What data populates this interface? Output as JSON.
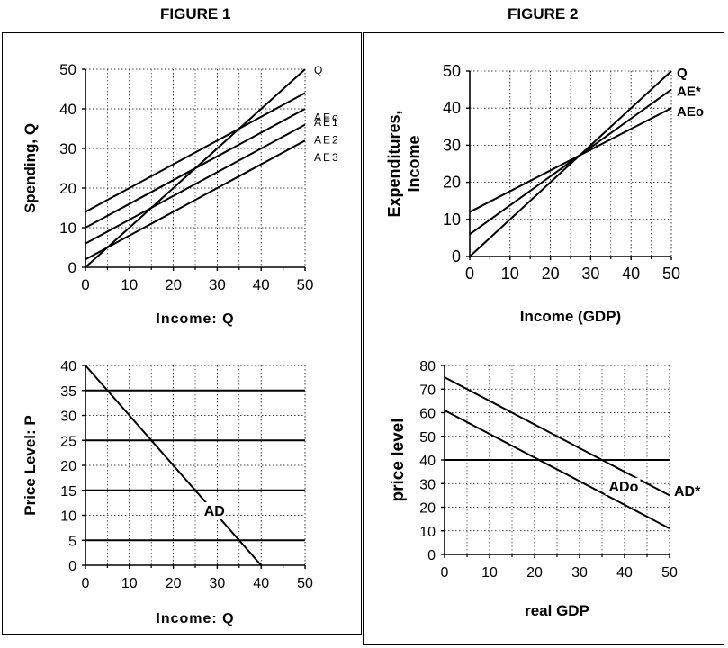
{
  "figure_titles": {
    "fig1": "FIGURE 1",
    "fig2": "FIGURE 2"
  },
  "chart_data": [
    {
      "id": "p1",
      "type": "line",
      "xlabel": "Income: Q",
      "ylabel": "Spending, Q",
      "xlim": [
        0,
        50
      ],
      "ylim": [
        0,
        50
      ],
      "xticks": [
        0,
        10,
        20,
        30,
        40,
        50
      ],
      "yticks": [
        0,
        10,
        20,
        30,
        40,
        50
      ],
      "grid": true,
      "series": [
        {
          "name": "Q",
          "x": [
            0,
            50
          ],
          "y": [
            0,
            50
          ]
        },
        {
          "name": "AEo",
          "x": [
            0,
            50
          ],
          "y": [
            14,
            44
          ]
        },
        {
          "name": "AE1",
          "x": [
            0,
            50
          ],
          "y": [
            10,
            40
          ]
        },
        {
          "name": "AE2",
          "x": [
            0,
            50
          ],
          "y": [
            6,
            36
          ]
        },
        {
          "name": "AE3",
          "x": [
            0,
            50
          ],
          "y": [
            2,
            32
          ]
        }
      ]
    },
    {
      "id": "p2",
      "type": "line",
      "xlabel": "Income (GDP)",
      "ylabel": "Expenditures, Income",
      "xlim": [
        0,
        50
      ],
      "ylim": [
        0,
        50
      ],
      "xticks": [
        0,
        10,
        20,
        30,
        40,
        50
      ],
      "yticks": [
        0,
        10,
        20,
        30,
        40,
        50
      ],
      "grid": true,
      "series": [
        {
          "name": "Q",
          "x": [
            0,
            50
          ],
          "y": [
            0,
            50
          ]
        },
        {
          "name": "AE*",
          "x": [
            0,
            50
          ],
          "y": [
            6,
            45
          ]
        },
        {
          "name": "AEo",
          "x": [
            0,
            50
          ],
          "y": [
            12,
            40
          ]
        }
      ]
    },
    {
      "id": "p3",
      "type": "line",
      "xlabel": "Income: Q",
      "ylabel": "Price Level: P",
      "xlim": [
        0,
        50
      ],
      "ylim": [
        0,
        40
      ],
      "xticks": [
        0,
        10,
        20,
        30,
        40,
        50
      ],
      "yticks": [
        0,
        5,
        10,
        15,
        20,
        25,
        30,
        35,
        40
      ],
      "grid": true,
      "series": [
        {
          "name": "AD",
          "x": [
            0,
            40
          ],
          "y": [
            40,
            0
          ]
        },
        {
          "x": [
            0,
            50
          ],
          "y": [
            35,
            35
          ]
        },
        {
          "x": [
            0,
            50
          ],
          "y": [
            25,
            25
          ]
        },
        {
          "x": [
            0,
            50
          ],
          "y": [
            15,
            15
          ]
        },
        {
          "x": [
            0,
            50
          ],
          "y": [
            5,
            5
          ]
        }
      ]
    },
    {
      "id": "p4",
      "type": "line",
      "xlabel": "real GDP",
      "ylabel": "price level",
      "xlim": [
        0,
        50
      ],
      "ylim": [
        0,
        80
      ],
      "xticks": [
        0,
        10,
        20,
        30,
        40,
        50
      ],
      "yticks": [
        0,
        10,
        20,
        30,
        40,
        50,
        60,
        70,
        80
      ],
      "grid": true,
      "series": [
        {
          "name": "AD*",
          "x": [
            0,
            50
          ],
          "y": [
            75,
            25
          ]
        },
        {
          "name": "ADo",
          "x": [
            0,
            50
          ],
          "y": [
            61,
            11
          ]
        },
        {
          "x": [
            0,
            50
          ],
          "y": [
            40,
            40
          ]
        }
      ]
    }
  ]
}
